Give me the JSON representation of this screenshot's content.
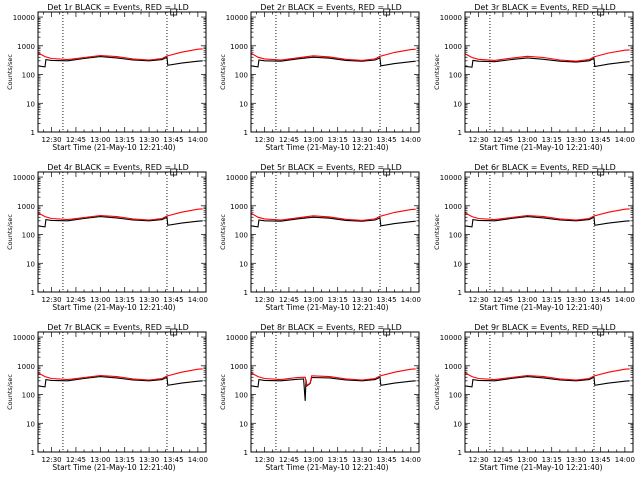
{
  "chart_data": [
    {
      "type": "line",
      "title": "Det 1r BLACK = Events, RED = LLD",
      "xlabel": "Start Time (21-May-10 12:21:40)",
      "ylabel": "Counts/sec",
      "x_tick_labels": [
        "12:30",
        "12:45",
        "13:00",
        "13:15",
        "13:30",
        "13:45",
        "14:00"
      ],
      "y_tick_labels": [
        "1",
        "10",
        "100",
        "1000",
        "10000"
      ],
      "xlim": [
        "12:21:40",
        "14:05"
      ],
      "ylim": [
        1,
        15000
      ],
      "y_scale": "log",
      "vlines": [
        "12:37",
        "13:41"
      ],
      "series": [
        {
          "color": "#000000",
          "x": [
            "12:22",
            "12:26",
            "12:26:30",
            "12:30",
            "12:40",
            "12:50",
            "13:00",
            "13:10",
            "13:20",
            "13:30",
            "13:38",
            "13:41",
            "13:41:30",
            "13:50",
            "14:00",
            "14:03"
          ],
          "y": [
            200,
            185,
            330,
            310,
            300,
            360,
            420,
            380,
            320,
            300,
            330,
            400,
            210,
            250,
            290,
            300
          ]
        },
        {
          "color": "#ff0000",
          "x": [
            "12:22",
            "12:26",
            "12:30",
            "12:40",
            "12:50",
            "13:00",
            "13:10",
            "13:20",
            "13:30",
            "13:38",
            "13:41",
            "13:50",
            "14:00",
            "14:03"
          ],
          "y": [
            560,
            420,
            360,
            330,
            390,
            460,
            420,
            350,
            320,
            360,
            440,
            600,
            760,
            780
          ]
        }
      ]
    },
    {
      "type": "line",
      "title": "Det 2r BLACK = Events, RED = LLD",
      "xlabel": "Start Time (21-May-10 12:21:40)",
      "ylabel": "Counts/sec",
      "x_tick_labels": [
        "12:30",
        "12:45",
        "13:00",
        "13:15",
        "13:30",
        "13:45",
        "14:00"
      ],
      "y_tick_labels": [
        "1",
        "10",
        "100",
        "1000",
        "10000"
      ],
      "xlim": [
        "12:21:40",
        "14:05"
      ],
      "ylim": [
        1,
        15000
      ],
      "y_scale": "log",
      "vlines": [
        "12:37",
        "13:41"
      ],
      "series": [
        {
          "color": "#000000",
          "x": [
            "12:22",
            "12:26",
            "12:26:30",
            "12:30",
            "12:40",
            "12:50",
            "13:00",
            "13:10",
            "13:20",
            "13:30",
            "13:38",
            "13:41",
            "13:41:30",
            "13:50",
            "14:00",
            "14:03"
          ],
          "y": [
            200,
            185,
            320,
            300,
            290,
            350,
            400,
            370,
            310,
            290,
            320,
            380,
            200,
            240,
            280,
            290
          ]
        },
        {
          "color": "#ff0000",
          "x": [
            "12:22",
            "12:26",
            "12:30",
            "12:40",
            "12:50",
            "13:00",
            "13:10",
            "13:20",
            "13:30",
            "13:38",
            "13:41",
            "13:50",
            "14:00",
            "14:03"
          ],
          "y": [
            540,
            400,
            350,
            320,
            380,
            450,
            410,
            340,
            310,
            350,
            430,
            590,
            740,
            760
          ]
        }
      ]
    },
    {
      "type": "line",
      "title": "Det 3r BLACK = Events, RED = LLD",
      "xlabel": "Start Time (21-May-10 12:21:40)",
      "ylabel": "Counts/sec",
      "x_tick_labels": [
        "12:30",
        "12:45",
        "13:00",
        "13:15",
        "13:30",
        "13:45",
        "14:00"
      ],
      "y_tick_labels": [
        "1",
        "10",
        "100",
        "1000",
        "10000"
      ],
      "xlim": [
        "12:21:40",
        "14:05"
      ],
      "ylim": [
        1,
        15000
      ],
      "y_scale": "log",
      "vlines": [
        "12:37",
        "13:41"
      ],
      "series": [
        {
          "color": "#000000",
          "x": [
            "12:22",
            "12:26",
            "12:26:30",
            "12:30",
            "12:40",
            "12:50",
            "13:00",
            "13:10",
            "13:20",
            "13:30",
            "13:38",
            "13:41",
            "13:41:30",
            "13:50",
            "14:00",
            "14:03"
          ],
          "y": [
            190,
            180,
            310,
            290,
            280,
            330,
            380,
            340,
            290,
            270,
            300,
            360,
            190,
            230,
            270,
            280
          ]
        },
        {
          "color": "#ff0000",
          "x": [
            "12:22",
            "12:26",
            "12:30",
            "12:40",
            "12:50",
            "13:00",
            "13:10",
            "13:20",
            "13:30",
            "13:38",
            "13:41",
            "13:50",
            "14:00",
            "14:03"
          ],
          "y": [
            520,
            390,
            340,
            310,
            370,
            430,
            390,
            320,
            290,
            330,
            410,
            560,
            700,
            720
          ]
        }
      ]
    },
    {
      "type": "line",
      "title": "Det 4r BLACK = Events, RED = LLD",
      "xlabel": "Start Time (21-May-10 12:21:40)",
      "ylabel": "Counts/sec",
      "x_tick_labels": [
        "12:30",
        "12:45",
        "13:00",
        "13:15",
        "13:30",
        "13:45",
        "14:00"
      ],
      "y_tick_labels": [
        "1",
        "10",
        "100",
        "1000",
        "10000"
      ],
      "xlim": [
        "12:21:40",
        "14:05"
      ],
      "ylim": [
        1,
        15000
      ],
      "y_scale": "log",
      "vlines": [
        "12:37",
        "13:41"
      ],
      "series": [
        {
          "color": "#000000",
          "x": [
            "12:22",
            "12:26",
            "12:26:30",
            "12:30",
            "12:40",
            "12:50",
            "13:00",
            "13:10",
            "13:20",
            "13:30",
            "13:38",
            "13:41",
            "13:41:30",
            "13:50",
            "14:00",
            "14:03"
          ],
          "y": [
            200,
            185,
            330,
            310,
            300,
            360,
            420,
            380,
            320,
            300,
            330,
            400,
            210,
            250,
            290,
            300
          ]
        },
        {
          "color": "#ff0000",
          "x": [
            "12:22",
            "12:26",
            "12:30",
            "12:40",
            "12:50",
            "13:00",
            "13:10",
            "13:20",
            "13:30",
            "13:38",
            "13:41",
            "13:50",
            "14:00",
            "14:03"
          ],
          "y": [
            560,
            420,
            360,
            330,
            390,
            460,
            420,
            350,
            320,
            360,
            440,
            600,
            760,
            780
          ]
        }
      ]
    },
    {
      "type": "line",
      "title": "Det 5r BLACK = Events, RED = LLD",
      "xlabel": "Start Time (21-May-10 12:21:40)",
      "ylabel": "Counts/sec",
      "x_tick_labels": [
        "12:30",
        "12:45",
        "13:00",
        "13:15",
        "13:30",
        "13:45",
        "14:00"
      ],
      "y_tick_labels": [
        "1",
        "10",
        "100",
        "1000",
        "10000"
      ],
      "xlim": [
        "12:21:40",
        "14:05"
      ],
      "ylim": [
        1,
        15000
      ],
      "y_scale": "log",
      "vlines": [
        "12:37",
        "13:41"
      ],
      "series": [
        {
          "color": "#000000",
          "x": [
            "12:22",
            "12:26",
            "12:26:30",
            "12:30",
            "12:40",
            "12:50",
            "13:00",
            "13:10",
            "13:20",
            "13:30",
            "13:38",
            "13:41",
            "13:41:30",
            "13:50",
            "14:00",
            "14:03"
          ],
          "y": [
            200,
            185,
            320,
            300,
            290,
            350,
            400,
            370,
            310,
            290,
            320,
            380,
            200,
            240,
            280,
            290
          ]
        },
        {
          "color": "#ff0000",
          "x": [
            "12:22",
            "12:26",
            "12:30",
            "12:40",
            "12:50",
            "13:00",
            "13:10",
            "13:20",
            "13:30",
            "13:38",
            "13:41",
            "13:50",
            "14:00",
            "14:03"
          ],
          "y": [
            540,
            400,
            350,
            320,
            380,
            450,
            410,
            340,
            310,
            350,
            430,
            590,
            740,
            760
          ]
        }
      ]
    },
    {
      "type": "line",
      "title": "Det 6r BLACK = Events, RED = LLD",
      "xlabel": "Start Time (21-May-10 12:21:40)",
      "ylabel": "Counts/sec",
      "x_tick_labels": [
        "12:30",
        "12:45",
        "13:00",
        "13:15",
        "13:30",
        "13:45",
        "14:00"
      ],
      "y_tick_labels": [
        "1",
        "10",
        "100",
        "1000",
        "10000"
      ],
      "xlim": [
        "12:21:40",
        "14:05"
      ],
      "ylim": [
        1,
        15000
      ],
      "y_scale": "log",
      "vlines": [
        "12:37",
        "13:41"
      ],
      "series": [
        {
          "color": "#000000",
          "x": [
            "12:22",
            "12:26",
            "12:26:30",
            "12:30",
            "12:40",
            "12:50",
            "13:00",
            "13:10",
            "13:20",
            "13:30",
            "13:38",
            "13:41",
            "13:41:30",
            "13:50",
            "14:00",
            "14:03"
          ],
          "y": [
            200,
            185,
            330,
            310,
            300,
            360,
            420,
            380,
            320,
            300,
            330,
            400,
            210,
            250,
            290,
            300
          ]
        },
        {
          "color": "#ff0000",
          "x": [
            "12:22",
            "12:26",
            "12:30",
            "12:40",
            "12:50",
            "13:00",
            "13:10",
            "13:20",
            "13:30",
            "13:38",
            "13:41",
            "13:50",
            "14:00",
            "14:03"
          ],
          "y": [
            560,
            420,
            360,
            330,
            390,
            460,
            420,
            350,
            320,
            360,
            440,
            600,
            760,
            780
          ]
        }
      ]
    },
    {
      "type": "line",
      "title": "Det 7r BLACK = Events, RED = LLD",
      "xlabel": "Start Time (21-May-10 12:21:40)",
      "ylabel": "Counts/sec",
      "x_tick_labels": [
        "12:30",
        "12:45",
        "13:00",
        "13:15",
        "13:30",
        "13:45",
        "14:00"
      ],
      "y_tick_labels": [
        "1",
        "10",
        "100",
        "1000",
        "10000"
      ],
      "xlim": [
        "12:21:40",
        "14:05"
      ],
      "ylim": [
        1,
        15000
      ],
      "y_scale": "log",
      "vlines": [
        "12:37",
        "13:41"
      ],
      "series": [
        {
          "color": "#000000",
          "x": [
            "12:22",
            "12:26",
            "12:26:30",
            "12:30",
            "12:40",
            "12:50",
            "13:00",
            "13:10",
            "13:20",
            "13:30",
            "13:38",
            "13:41",
            "13:41:30",
            "13:50",
            "14:00",
            "14:03"
          ],
          "y": [
            200,
            185,
            330,
            310,
            300,
            360,
            420,
            380,
            320,
            300,
            330,
            400,
            210,
            250,
            290,
            300
          ]
        },
        {
          "color": "#ff0000",
          "x": [
            "12:22",
            "12:26",
            "12:30",
            "12:40",
            "12:50",
            "13:00",
            "13:10",
            "13:20",
            "13:30",
            "13:38",
            "13:41",
            "13:50",
            "14:00",
            "14:03"
          ],
          "y": [
            560,
            420,
            360,
            330,
            390,
            460,
            420,
            350,
            320,
            360,
            440,
            600,
            760,
            780
          ]
        }
      ]
    },
    {
      "type": "line",
      "title": "Det 8r BLACK = Events, RED = LLD",
      "xlabel": "Start Time (21-May-10 12:21:40)",
      "ylabel": "Counts/sec",
      "x_tick_labels": [
        "12:30",
        "12:45",
        "13:00",
        "13:15",
        "13:30",
        "13:45",
        "14:00"
      ],
      "y_tick_labels": [
        "1",
        "10",
        "100",
        "1000",
        "10000"
      ],
      "xlim": [
        "12:21:40",
        "14:05"
      ],
      "ylim": [
        1,
        15000
      ],
      "y_scale": "log",
      "vlines": [
        "12:37",
        "13:41"
      ],
      "series": [
        {
          "color": "#000000",
          "x": [
            "12:22",
            "12:26",
            "12:26:30",
            "12:30",
            "12:40",
            "12:50",
            "12:54",
            "12:55",
            "12:55:30",
            "12:56",
            "12:58",
            "12:59",
            "13:10",
            "13:20",
            "13:30",
            "13:38",
            "13:41",
            "13:41:30",
            "13:50",
            "14:00",
            "14:03"
          ],
          "y": [
            200,
            185,
            330,
            310,
            300,
            340,
            350,
            60,
            330,
            200,
            240,
            390,
            380,
            320,
            300,
            330,
            400,
            210,
            250,
            290,
            300
          ]
        },
        {
          "color": "#ff0000",
          "x": [
            "12:22",
            "12:26",
            "12:30",
            "12:40",
            "12:50",
            "12:55",
            "12:56",
            "12:58",
            "12:59",
            "13:10",
            "13:20",
            "13:30",
            "13:38",
            "13:41",
            "13:50",
            "14:00",
            "14:03"
          ],
          "y": [
            560,
            420,
            360,
            330,
            390,
            400,
            210,
            250,
            450,
            420,
            350,
            320,
            360,
            440,
            600,
            760,
            780
          ]
        }
      ]
    },
    {
      "type": "line",
      "title": "Det 9r BLACK = Events, RED = LLD",
      "xlabel": "Start Time (21-May-10 12:21:40)",
      "ylabel": "Counts/sec",
      "x_tick_labels": [
        "12:30",
        "12:45",
        "13:00",
        "13:15",
        "13:30",
        "13:45",
        "14:00"
      ],
      "y_tick_labels": [
        "1",
        "10",
        "100",
        "1000",
        "10000"
      ],
      "xlim": [
        "12:21:40",
        "14:05"
      ],
      "ylim": [
        1,
        15000
      ],
      "y_scale": "log",
      "vlines": [
        "12:37",
        "13:41"
      ],
      "series": [
        {
          "color": "#000000",
          "x": [
            "12:22",
            "12:26",
            "12:26:30",
            "12:30",
            "12:40",
            "12:50",
            "13:00",
            "13:10",
            "13:20",
            "13:30",
            "13:38",
            "13:41",
            "13:41:30",
            "13:50",
            "14:00",
            "14:03"
          ],
          "y": [
            200,
            185,
            330,
            310,
            300,
            360,
            420,
            380,
            320,
            300,
            330,
            400,
            210,
            250,
            290,
            300
          ]
        },
        {
          "color": "#ff0000",
          "x": [
            "12:22",
            "12:26",
            "12:30",
            "12:40",
            "12:50",
            "13:00",
            "13:10",
            "13:20",
            "13:30",
            "13:38",
            "13:41",
            "13:50",
            "14:00",
            "14:03"
          ],
          "y": [
            560,
            420,
            360,
            330,
            390,
            460,
            420,
            350,
            320,
            360,
            440,
            600,
            760,
            780
          ]
        }
      ]
    }
  ]
}
